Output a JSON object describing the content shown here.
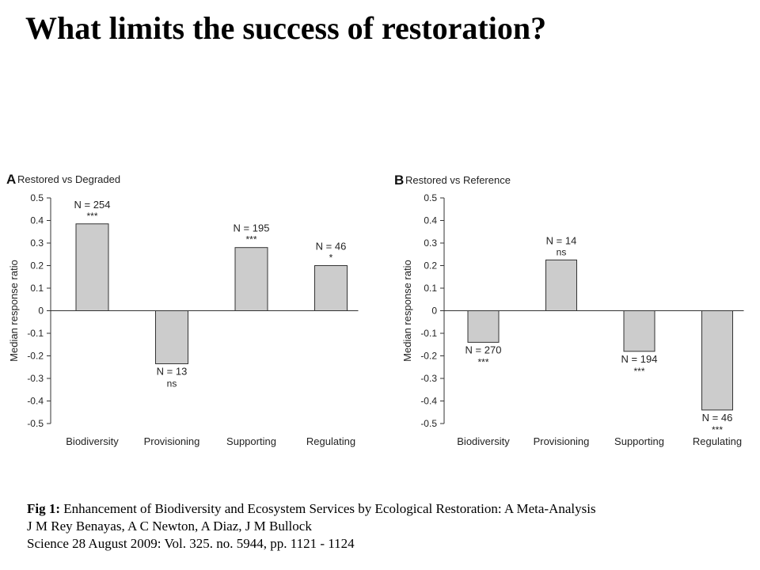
{
  "slide": {
    "title": "What limits the success of restoration?"
  },
  "caption": {
    "fig_label": "Fig 1:",
    "line1": " Enhancement of Biodiversity and Ecosystem Services by Ecological Restoration: A Meta-Analysis",
    "line2": "J M Rey Benayas, A C Newton, A Diaz, J M Bullock",
    "line3": "Science 28 August 2009:  Vol. 325. no. 5944, pp. 1121 - 1124"
  },
  "chart_data": [
    {
      "type": "bar",
      "panel_letter": "A",
      "title": "Restored vs Degraded",
      "ylabel": "Median response ratio",
      "xlabel": "",
      "ylim": [
        -0.5,
        0.5
      ],
      "yticks": [
        "0.5",
        "0.4",
        "0.3",
        "0.2",
        "0.1",
        "0",
        "-0.1",
        "-0.2",
        "-0.3",
        "-0.4",
        "-0.5"
      ],
      "categories": [
        "Biodiversity",
        "Provisioning",
        "Supporting",
        "Regulating"
      ],
      "values": [
        0.385,
        -0.235,
        0.28,
        0.2
      ],
      "n_labels": [
        "N = 254",
        "N = 13",
        "N = 195",
        "N = 46"
      ],
      "significance": [
        "***",
        "ns",
        "***",
        "*"
      ],
      "bar_color": "#cccccc",
      "grid": false
    },
    {
      "type": "bar",
      "panel_letter": "B",
      "title": "Restored vs Reference",
      "ylabel": "Median response ratio",
      "xlabel": "",
      "ylim": [
        -0.5,
        0.5
      ],
      "yticks": [
        "0.5",
        "0.4",
        "0.3",
        "0.2",
        "0.1",
        "0",
        "-0.1",
        "-0.2",
        "-0.3",
        "-0.4",
        "-0.5"
      ],
      "categories": [
        "Biodiversity",
        "Provisioning",
        "Supporting",
        "Regulating"
      ],
      "values": [
        -0.14,
        0.225,
        -0.18,
        -0.44
      ],
      "n_labels": [
        "N = 270",
        "N = 14",
        "N = 194",
        "N = 46"
      ],
      "significance": [
        "***",
        "ns",
        "***",
        "***"
      ],
      "bar_color": "#cccccc",
      "grid": false
    }
  ]
}
